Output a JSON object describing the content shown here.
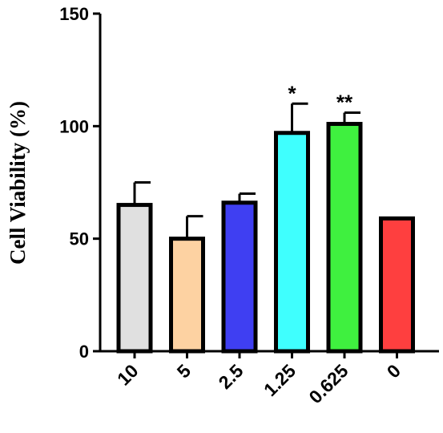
{
  "chart_data": {
    "type": "bar",
    "title": "",
    "xlabel": "",
    "ylabel": "Cell Viability (%)",
    "ylim": [
      0,
      150
    ],
    "yticks": [
      0,
      50,
      100,
      150
    ],
    "categories": [
      "10",
      "5",
      "2.5",
      "1.25",
      "0.625",
      "0"
    ],
    "values": [
      65,
      50,
      66,
      97,
      101,
      59
    ],
    "errors": [
      10,
      10,
      4,
      13,
      5,
      null
    ],
    "significance": [
      "",
      "",
      "",
      "*",
      "**",
      ""
    ],
    "colors": [
      "#e0e0e0",
      "#fdd2a2",
      "#3f3ff2",
      "#3ffffe",
      "#3ff03f",
      "#fe3f3f"
    ],
    "grid": false,
    "legend": "none"
  }
}
